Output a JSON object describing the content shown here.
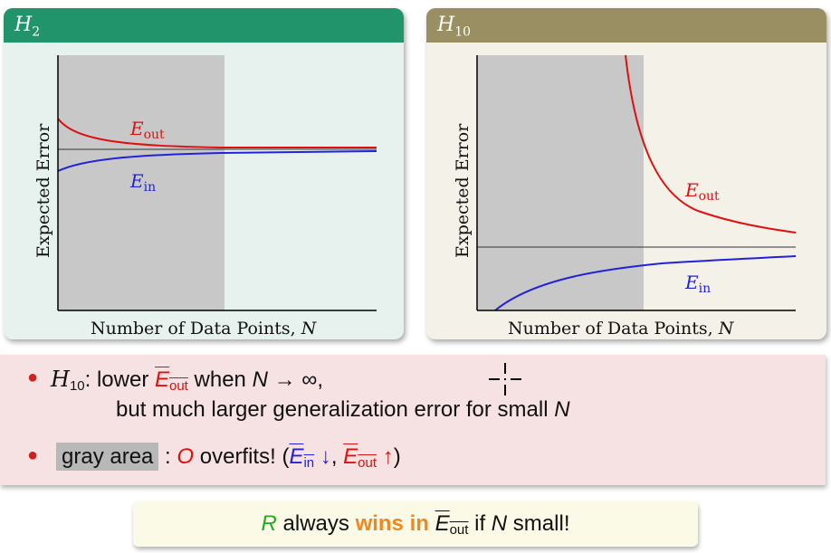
{
  "left_panel": {
    "title_main": "H",
    "title_sub": "2",
    "ylabel": "Expected Error",
    "xlabel_text": "Number of Data Points, ",
    "xlabel_var": "N",
    "eout_main": "E",
    "eout_sub": "out",
    "ein_main": "E",
    "ein_sub": "in"
  },
  "right_panel": {
    "title_main": "H",
    "title_sub": "10",
    "ylabel": "Expected Error",
    "xlabel_text": "Number of Data Points, ",
    "xlabel_var": "N",
    "eout_main": "E",
    "eout_sub": "out",
    "ein_main": "E",
    "ein_sub": "in"
  },
  "bullets": {
    "b1": {
      "h_main": "H",
      "h_sub": "10",
      "t1": ": lower ",
      "e_main": "E",
      "e_sub": "out",
      "t2": " when ",
      "n": "N",
      "arrow": " → ∞,",
      "line2_text": "but much larger generalization error for small ",
      "line2_n": "N"
    },
    "b2": {
      "tag": "gray area",
      "t1": " : ",
      "o": "O",
      "t2": " overfits! (",
      "ein_main": "E",
      "ein_sub": "in",
      "down": " ↓",
      "comma": ", ",
      "eout_main": "E",
      "eout_sub": "out",
      "up": " ↑",
      "close": ")"
    }
  },
  "bottom": {
    "r": "R",
    "t1": " always ",
    "wins": "wins in ",
    "e_main": "E",
    "e_sub": "out",
    "t2": " if ",
    "n": "N",
    "t3": " small!"
  },
  "colors": {
    "left_header": "#21946b",
    "right_header": "#9a8f63",
    "eout": "#dd1111",
    "ein": "#2222dd",
    "gray_area": "#c8c8c8"
  }
}
